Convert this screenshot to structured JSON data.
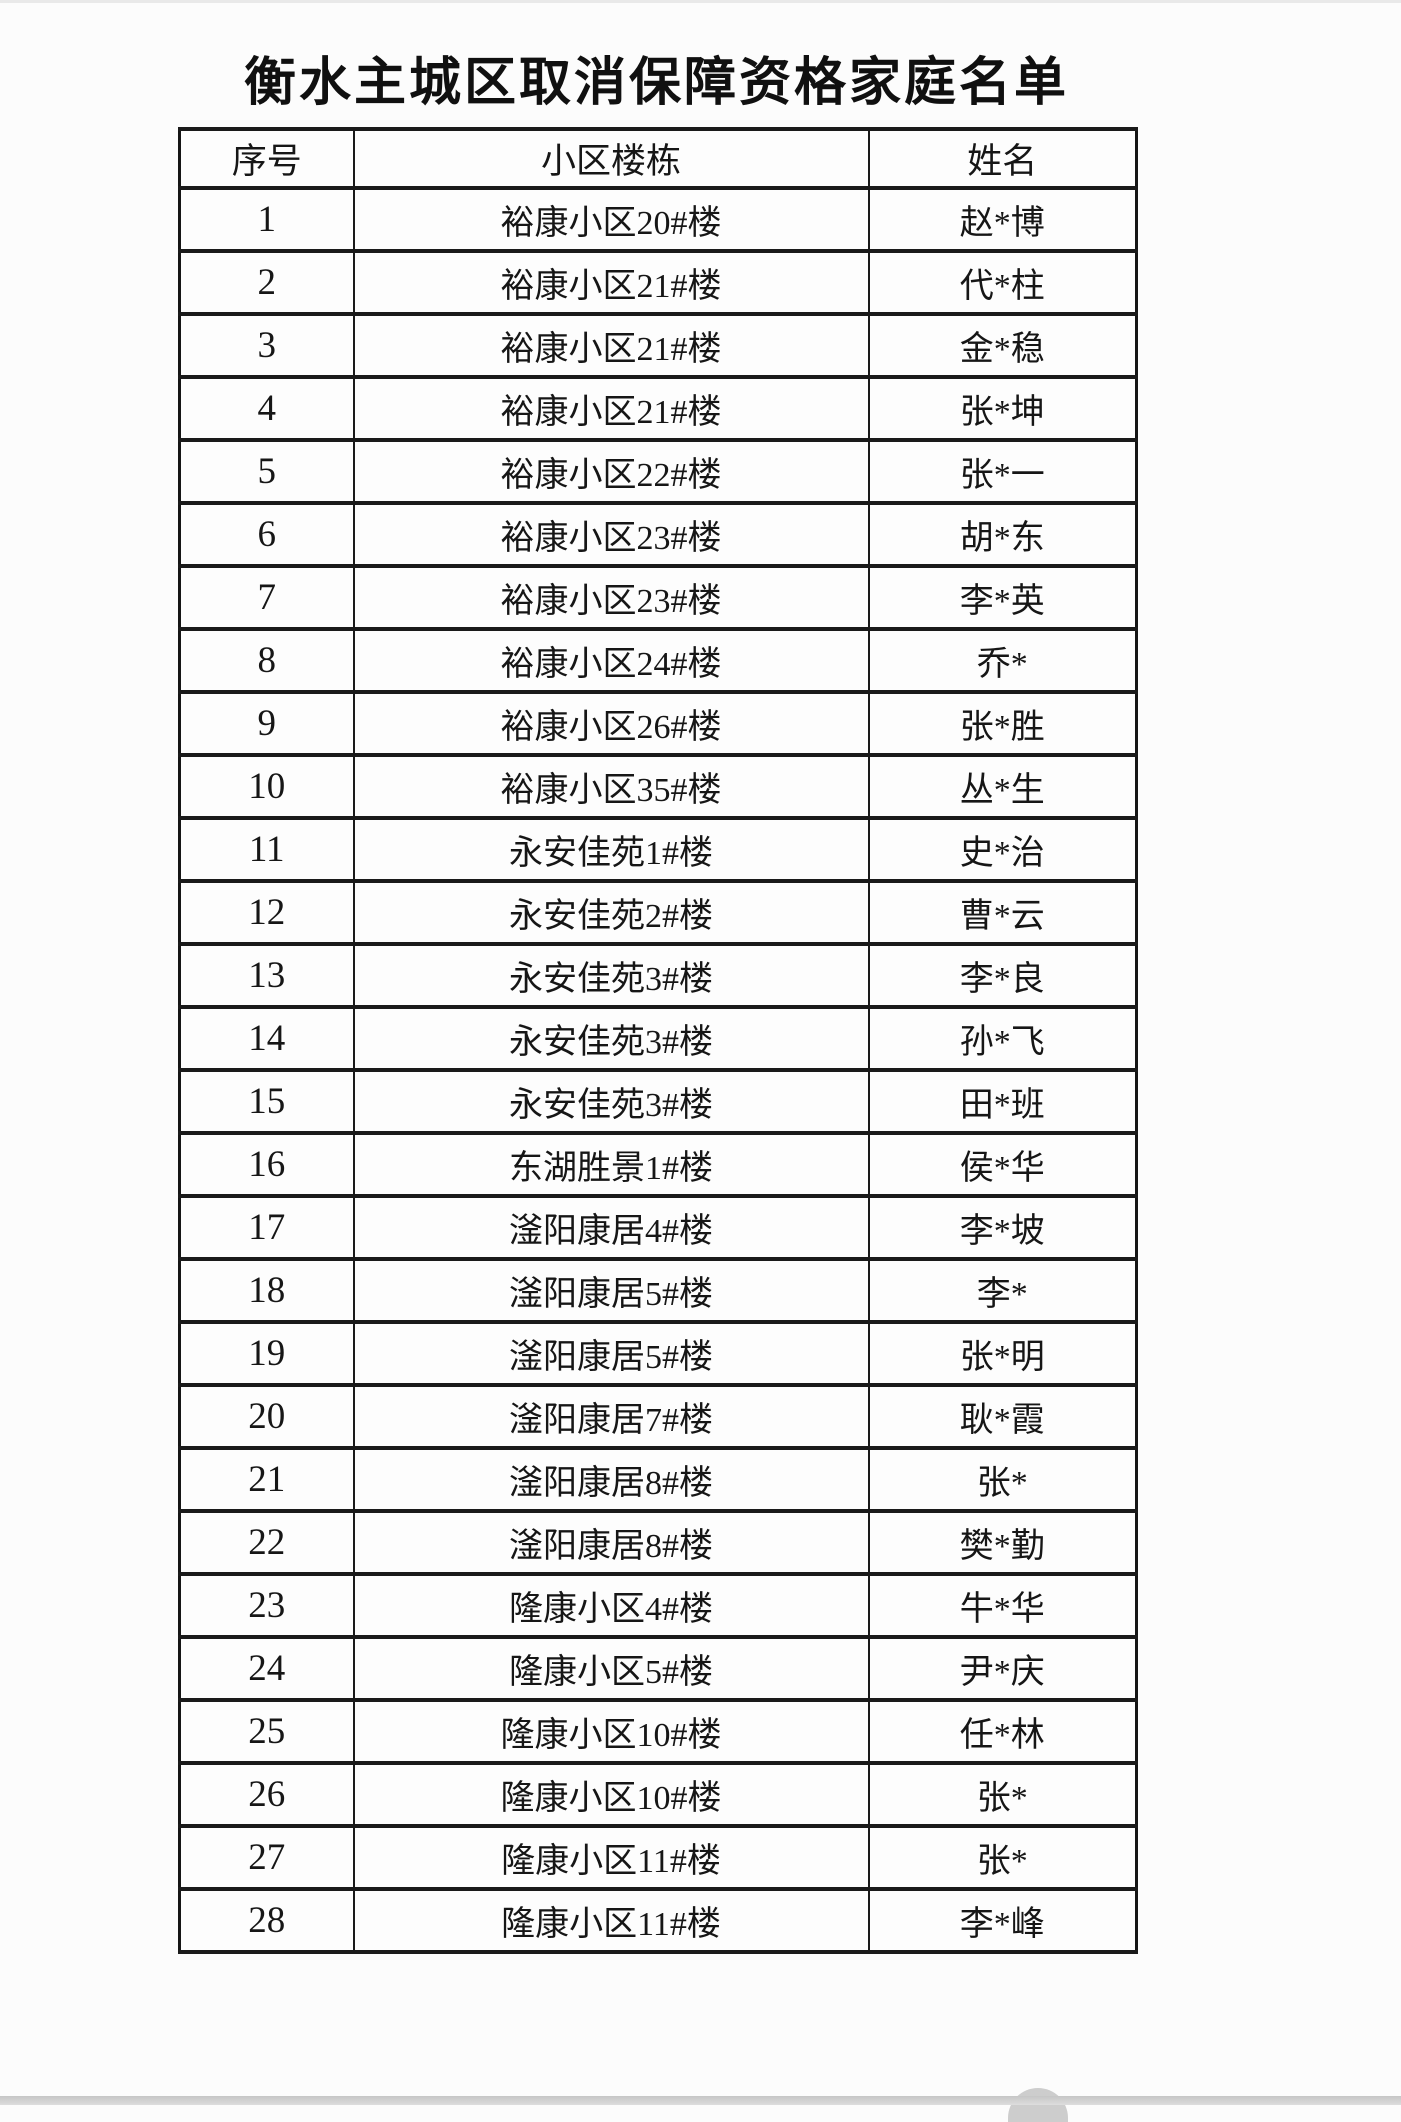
{
  "page": {
    "title": "衡水主城区取消保障资格家庭名单"
  },
  "table": {
    "headers": [
      "序号",
      "小区楼栋",
      "姓名"
    ],
    "rows": [
      {
        "no": "1",
        "building": "裕康小区20#楼",
        "name": "赵*博"
      },
      {
        "no": "2",
        "building": "裕康小区21#楼",
        "name": "代*柱"
      },
      {
        "no": "3",
        "building": "裕康小区21#楼",
        "name": "金*稳"
      },
      {
        "no": "4",
        "building": "裕康小区21#楼",
        "name": "张*坤"
      },
      {
        "no": "5",
        "building": "裕康小区22#楼",
        "name": "张*一"
      },
      {
        "no": "6",
        "building": "裕康小区23#楼",
        "name": "胡*东"
      },
      {
        "no": "7",
        "building": "裕康小区23#楼",
        "name": "李*英"
      },
      {
        "no": "8",
        "building": "裕康小区24#楼",
        "name": "乔*"
      },
      {
        "no": "9",
        "building": "裕康小区26#楼",
        "name": "张*胜"
      },
      {
        "no": "10",
        "building": "裕康小区35#楼",
        "name": "丛*生"
      },
      {
        "no": "11",
        "building": "永安佳苑1#楼",
        "name": "史*治"
      },
      {
        "no": "12",
        "building": "永安佳苑2#楼",
        "name": "曹*云"
      },
      {
        "no": "13",
        "building": "永安佳苑3#楼",
        "name": "李*良"
      },
      {
        "no": "14",
        "building": "永安佳苑3#楼",
        "name": "孙*飞"
      },
      {
        "no": "15",
        "building": "永安佳苑3#楼",
        "name": "田*班"
      },
      {
        "no": "16",
        "building": "东湖胜景1#楼",
        "name": "侯*华"
      },
      {
        "no": "17",
        "building": "滏阳康居4#楼",
        "name": "李*坡"
      },
      {
        "no": "18",
        "building": "滏阳康居5#楼",
        "name": "李*"
      },
      {
        "no": "19",
        "building": "滏阳康居5#楼",
        "name": "张*明"
      },
      {
        "no": "20",
        "building": "滏阳康居7#楼",
        "name": "耿*霞"
      },
      {
        "no": "21",
        "building": "滏阳康居8#楼",
        "name": "张*"
      },
      {
        "no": "22",
        "building": "滏阳康居8#楼",
        "name": "樊*勤"
      },
      {
        "no": "23",
        "building": "隆康小区4#楼",
        "name": "牛*华"
      },
      {
        "no": "24",
        "building": "隆康小区5#楼",
        "name": "尹*庆"
      },
      {
        "no": "25",
        "building": "隆康小区10#楼",
        "name": "任*林"
      },
      {
        "no": "26",
        "building": "隆康小区10#楼",
        "name": "张*"
      },
      {
        "no": "27",
        "building": "隆康小区11#楼",
        "name": "张*"
      },
      {
        "no": "28",
        "building": "隆康小区11#楼",
        "name": "李*峰"
      }
    ]
  }
}
